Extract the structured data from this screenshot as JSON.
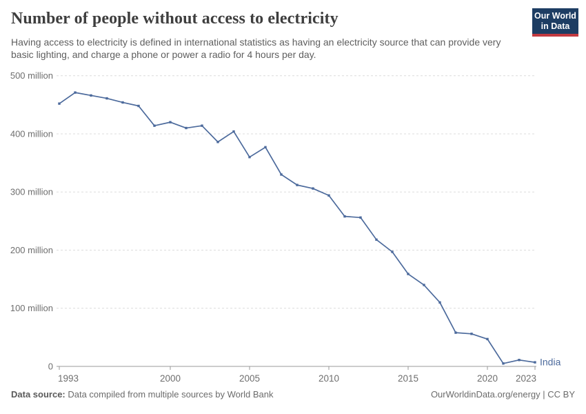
{
  "header": {
    "title": "Number of people without access to electricity",
    "subtitle": "Having access to electricity is defined in international statistics as having an electricity source that can provide very basic lighting, and charge a phone or power a radio for 4 hours per day.",
    "logo": {
      "line1": "Our World",
      "line2": "in Data",
      "background_color": "#1d3d63",
      "bar_color": "#c23a40"
    }
  },
  "chart_data": {
    "type": "line",
    "title": "Number of people without access to electricity",
    "xlabel": "",
    "ylabel": "",
    "xlim": [
      1993,
      2023
    ],
    "ylim": [
      0,
      500000000
    ],
    "grid": "horizontal-dashed",
    "legend_position": "end-of-line",
    "unit": "people (millions)",
    "x": [
      1993,
      1994,
      1995,
      1996,
      1997,
      1998,
      1999,
      2000,
      2001,
      2002,
      2003,
      2004,
      2005,
      2006,
      2007,
      2008,
      2009,
      2010,
      2011,
      2012,
      2013,
      2014,
      2015,
      2016,
      2017,
      2018,
      2019,
      2020,
      2021,
      2022,
      2023
    ],
    "series": [
      {
        "name": "India",
        "color": "#4c6a9c",
        "values_millions": [
          452,
          471,
          466,
          461,
          454,
          448,
          414,
          420,
          410,
          414,
          386,
          404,
          360,
          377,
          330,
          312,
          306,
          294,
          258,
          256,
          218,
          197,
          159,
          140,
          110,
          58,
          56,
          47,
          5,
          11,
          7
        ]
      }
    ],
    "x_ticks": [
      1993,
      2000,
      2005,
      2010,
      2015,
      2020,
      2023
    ],
    "y_ticks_millions": [
      0,
      100,
      200,
      300,
      400,
      500
    ],
    "y_tick_labels": [
      "0",
      "100 million",
      "200 million",
      "300 million",
      "400 million",
      "500 million"
    ]
  },
  "footer": {
    "source_label": "Data source:",
    "source_text": " Data compiled from multiple sources by World Bank",
    "right_text": "OurWorldinData.org/energy | CC BY"
  },
  "colors": {
    "series_blue": "#4c6a9c",
    "gridline": "#dcdcdc",
    "axis": "#9a9a9a",
    "tick_label": "#6e6e6e",
    "title_text": "#3e3e3e",
    "subtitle_text": "#5e5e5e"
  }
}
